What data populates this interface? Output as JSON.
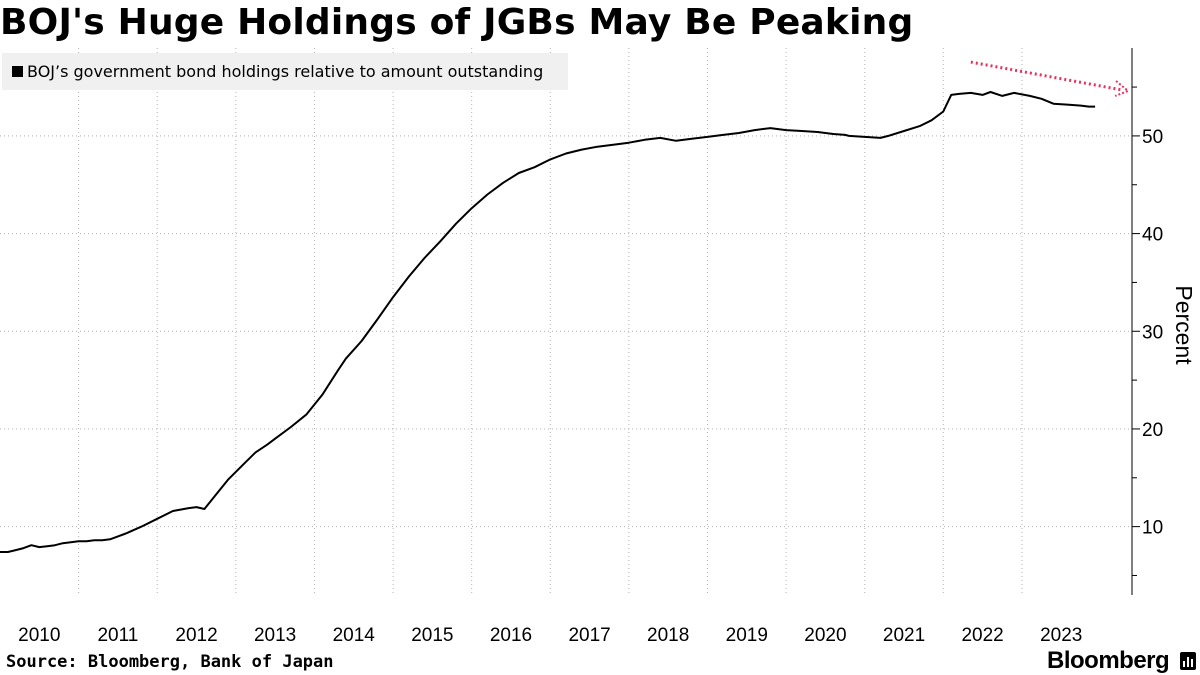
{
  "header": {
    "title": "BOJ's Huge Holdings of JGBs May Be Peaking"
  },
  "footer": {
    "source": "Source: Bloomberg, Bank of Japan",
    "brand": "Bloomberg"
  },
  "colors": {
    "line": "#000000",
    "arrow": "#e8305a",
    "grid": "#b3b3b3",
    "legend_bg": "#f0f0f0"
  },
  "chart_data": {
    "type": "line",
    "title": "BOJ's Huge Holdings of JGBs May Be Peaking",
    "xlabel": "",
    "ylabel": "Percent",
    "xlim": [
      2010.0,
      2024.4
    ],
    "ylim": [
      3,
      59
    ],
    "yticks": [
      10,
      20,
      30,
      40,
      50
    ],
    "xtick_labels": [
      "2010",
      "2011",
      "2012",
      "2013",
      "2014",
      "2015",
      "2016",
      "2017",
      "2018",
      "2019",
      "2020",
      "2021",
      "2022",
      "2023"
    ],
    "grid": true,
    "legend_position": "top-left",
    "series": [
      {
        "name": "BOJ’s government bond holdings relative to amount outstanding",
        "x": [
          2010.0,
          2010.1,
          2010.2,
          2010.3,
          2010.4,
          2010.5,
          2010.6,
          2010.7,
          2010.8,
          2010.9,
          2011.0,
          2011.1,
          2011.2,
          2011.3,
          2011.4,
          2011.5,
          2011.6,
          2011.8,
          2012.0,
          2012.2,
          2012.4,
          2012.5,
          2012.6,
          2012.8,
          2012.9,
          2013.0,
          2013.1,
          2013.25,
          2013.4,
          2013.5,
          2013.7,
          2013.9,
          2014.1,
          2014.3,
          2014.4,
          2014.6,
          2014.8,
          2015.0,
          2015.2,
          2015.4,
          2015.6,
          2015.8,
          2016.0,
          2016.2,
          2016.4,
          2016.6,
          2016.8,
          2017.0,
          2017.2,
          2017.4,
          2017.6,
          2017.8,
          2018.0,
          2018.2,
          2018.4,
          2018.6,
          2018.8,
          2019.0,
          2019.2,
          2019.4,
          2019.6,
          2019.8,
          2020.0,
          2020.2,
          2020.4,
          2020.6,
          2020.75,
          2020.8,
          2021.0,
          2021.2,
          2021.3,
          2021.5,
          2021.7,
          2021.85,
          2022.0,
          2022.1,
          2022.2,
          2022.35,
          2022.5,
          2022.6,
          2022.75,
          2022.9,
          2023.1,
          2023.25,
          2023.4,
          2023.6,
          2023.75,
          2023.85,
          2023.93
        ],
        "y": [
          7.4,
          7.4,
          7.6,
          7.8,
          8.1,
          7.9,
          8.0,
          8.1,
          8.3,
          8.4,
          8.5,
          8.5,
          8.6,
          8.6,
          8.7,
          9.0,
          9.3,
          10.0,
          10.8,
          11.6,
          11.9,
          12.0,
          11.8,
          13.8,
          14.8,
          15.6,
          16.4,
          17.6,
          18.4,
          19.0,
          20.2,
          21.5,
          23.5,
          26.0,
          27.2,
          29.0,
          31.2,
          33.5,
          35.6,
          37.5,
          39.2,
          41.0,
          42.6,
          44.0,
          45.2,
          46.2,
          46.8,
          47.6,
          48.2,
          48.6,
          48.9,
          49.1,
          49.3,
          49.6,
          49.8,
          49.5,
          49.7,
          49.9,
          50.1,
          50.3,
          50.6,
          50.8,
          50.6,
          50.5,
          50.4,
          50.2,
          50.1,
          50.0,
          49.9,
          49.8,
          50.0,
          50.5,
          51.0,
          51.6,
          52.5,
          54.2,
          54.3,
          54.4,
          54.2,
          54.5,
          54.1,
          54.4,
          54.1,
          53.8,
          53.3,
          53.2,
          53.1,
          53.0,
          53.0
        ]
      }
    ],
    "annotation": {
      "type": "dashed-arrow",
      "color": "#e8305a",
      "meaning": "decline after peak"
    }
  }
}
